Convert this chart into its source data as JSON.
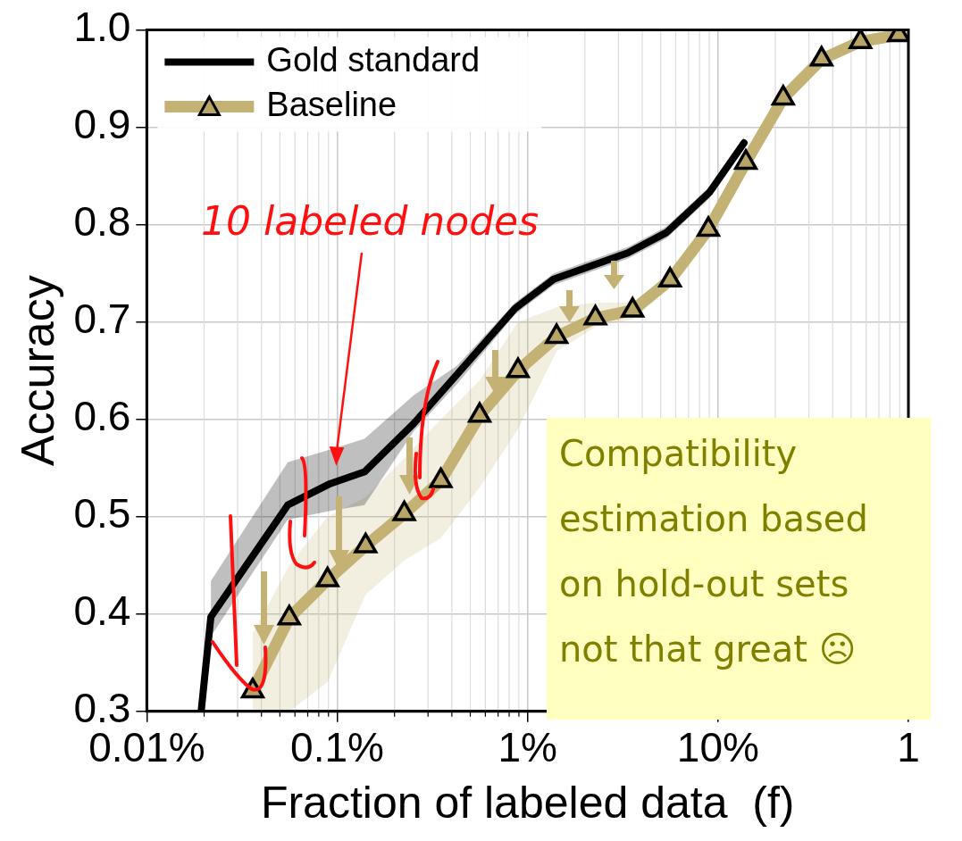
{
  "chart_data": {
    "type": "line",
    "xlabel": "Fraction of labeled data  (f)",
    "ylabel": "Accuracy",
    "log": "x",
    "grid": true,
    "legend": "top left",
    "line_style": "solid",
    "xlim": [
      0.0001,
      1
    ],
    "xticks": [
      {
        "value": 0.0001,
        "label": "0.01%"
      },
      {
        "value": 0.001,
        "label": "0.1%"
      },
      {
        "value": 0.01,
        "label": "1%"
      },
      {
        "value": 0.1,
        "label": "10%"
      },
      1
    ],
    "ylim": [
      0.3,
      1.0
    ],
    "yticks": [
      0.3,
      0.4,
      0.5,
      0.6,
      0.7,
      0.8,
      0.9,
      {
        "value": 1.0,
        "label": "1.0"
      }
    ],
    "series": [
      {
        "name": "Gold standard",
        "color": "#000000",
        "marker": "none",
        "x": [
          0.000193,
          0.000217,
          0.00055,
          0.00092,
          0.00139,
          0.00253,
          0.00425,
          0.0086,
          0.0137,
          0.0336,
          0.0537,
          0.09,
          0.137
        ],
        "values": [
          0.3,
          0.397,
          0.512,
          0.534,
          0.546,
          0.596,
          0.646,
          0.714,
          0.744,
          0.771,
          0.792,
          0.833,
          0.884
        ],
        "lower": [
          null,
          0.377,
          0.497,
          0.506,
          0.512,
          0.588,
          0.636,
          0.708,
          0.738,
          0.765,
          0.786,
          0.827,
          0.878
        ],
        "upper": [
          null,
          0.434,
          0.556,
          0.569,
          0.58,
          0.625,
          0.655,
          0.72,
          0.75,
          0.777,
          0.798,
          0.839,
          0.89
        ]
      },
      {
        "name": "Baseline",
        "color": "#c4b274",
        "marker": "triangle",
        "x": [
          0.00036,
          0.00056,
          0.00089,
          0.00141,
          0.00225,
          0.0035,
          0.0056,
          0.0089,
          0.0142,
          0.0227,
          0.0356,
          0.056,
          0.089,
          0.14,
          0.22,
          0.35,
          0.56,
          0.89
        ],
        "values": [
          0.321,
          0.396,
          0.435,
          0.47,
          0.503,
          0.537,
          0.604,
          0.65,
          0.685,
          0.704,
          0.712,
          0.743,
          0.795,
          0.864,
          0.93,
          0.97,
          0.988,
          0.995
        ],
        "lower": [
          0.3,
          0.3,
          0.33,
          0.42,
          0.455,
          0.478,
          0.53,
          0.59,
          0.67,
          0.695,
          0.703,
          0.735,
          0.79,
          0.86,
          0.927,
          0.968,
          0.987,
          0.994
        ],
        "upper": [
          0.38,
          0.45,
          0.5,
          0.52,
          0.56,
          0.6,
          0.64,
          0.7,
          0.715,
          0.72,
          0.72,
          0.75,
          0.8,
          0.868,
          0.933,
          0.972,
          0.99,
          0.996
        ]
      }
    ],
    "annotations": [
      {
        "text": "10 labeled nodes",
        "x": 0.001,
        "y": 0.571
      },
      "Compatibility\nestimation based\non hold-out sets\nnot that great ☹"
    ]
  }
}
